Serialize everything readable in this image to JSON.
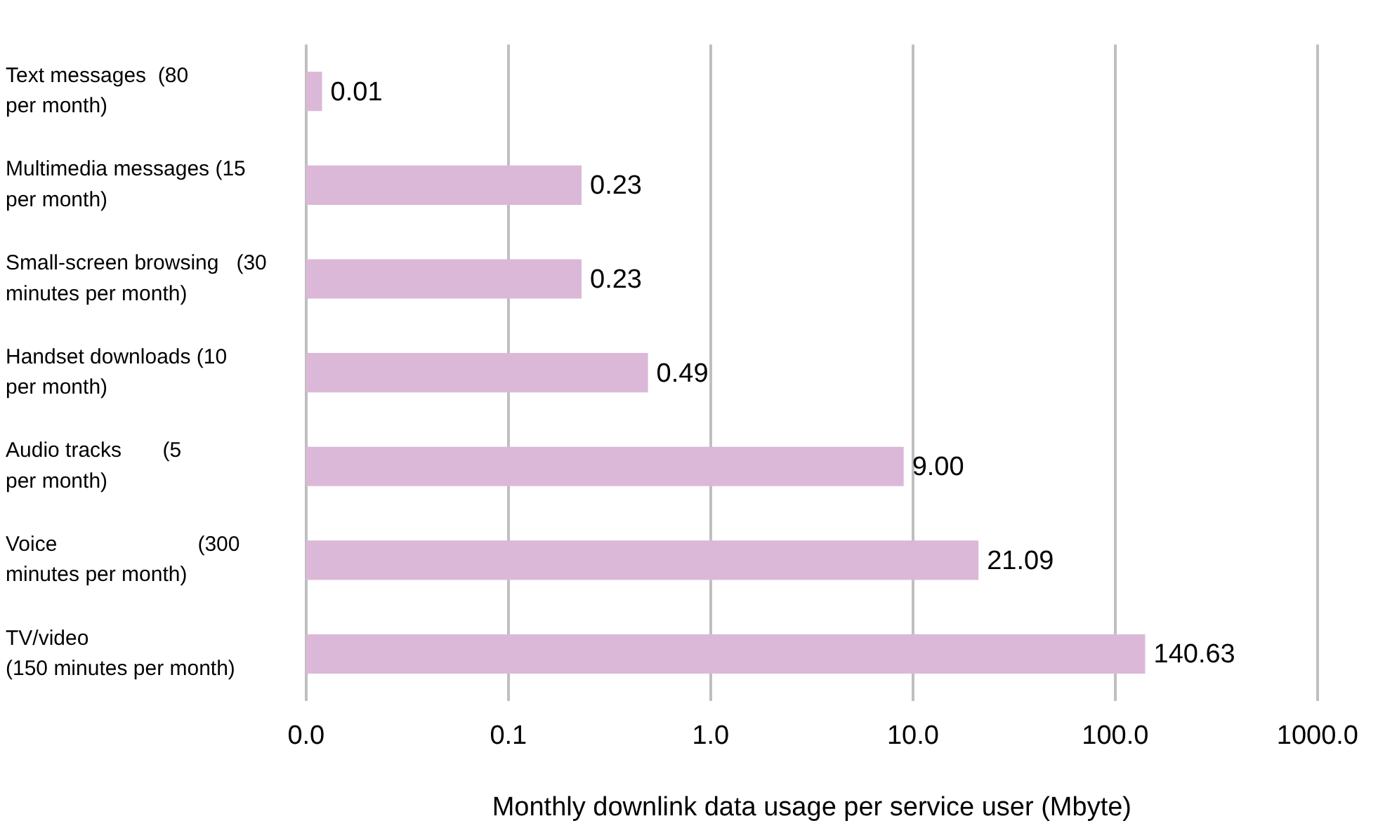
{
  "chart_data": {
    "type": "bar",
    "orientation": "horizontal",
    "xlabel": "Monthly downlink data usage per service user (Mbyte)",
    "categories": [
      "Text messages  (80\nper month)",
      "Multimedia messages (15\nper month)",
      "Small-screen browsing   (30\nminutes per month)",
      "Handset downloads (10\nper month)",
      "Audio tracks       (5\nper month)",
      "Voice                        (300\nminutes per month)",
      "TV/video\n(150 minutes per month)"
    ],
    "values": [
      0.012,
      0.23,
      0.23,
      0.49,
      9.0,
      21.09,
      140.63
    ],
    "value_labels": [
      "0.01",
      "0.23",
      "0.23",
      "0.49",
      "9.00",
      "21.09",
      "140.63"
    ],
    "color": "#dbb8d8",
    "log": "x",
    "xlim": [
      0.01,
      1000
    ],
    "xticks": [
      {
        "value": 0.01,
        "label": "0.0"
      },
      {
        "value": 0.1,
        "label": "0.1"
      },
      {
        "value": 1,
        "label": "1.0"
      },
      {
        "value": 10,
        "label": "10.0"
      },
      {
        "value": 100,
        "label": "100.0"
      },
      {
        "value": 1000,
        "label": "1000.0"
      }
    ],
    "grid": "x",
    "legend": false
  }
}
